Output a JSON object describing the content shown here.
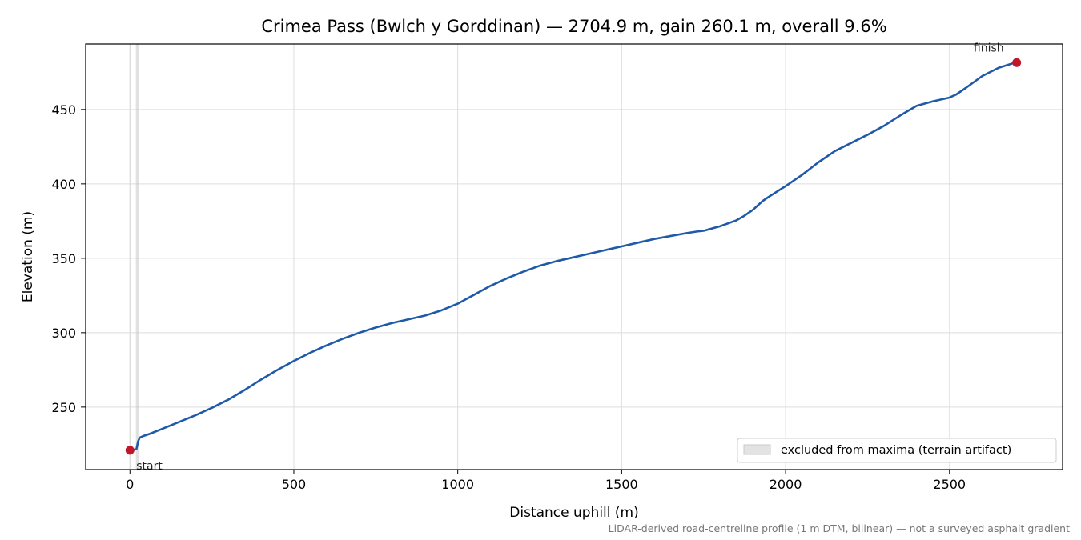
{
  "chart_data": {
    "type": "line",
    "title": "Crimea Pass (Bwlch y Gorddinan) — 2704.9 m, gain 260.1 m, overall 9.6%",
    "xlabel": "Distance uphill (m)",
    "ylabel": "Elevation (m)",
    "xlim": [
      -135,
      2845
    ],
    "ylim": [
      208,
      494
    ],
    "x_ticks": [
      0,
      500,
      1000,
      1500,
      2000,
      2500
    ],
    "y_ticks": [
      250,
      300,
      350,
      400,
      450
    ],
    "grid": true,
    "series": [
      {
        "color": "#1f5aa8",
        "x": [
          0,
          10,
          20,
          25,
          30,
          40,
          60,
          100,
          150,
          200,
          250,
          300,
          350,
          400,
          450,
          500,
          550,
          600,
          650,
          700,
          750,
          800,
          850,
          900,
          950,
          1000,
          1050,
          1100,
          1150,
          1200,
          1250,
          1300,
          1350,
          1400,
          1450,
          1500,
          1550,
          1600,
          1650,
          1700,
          1730,
          1750,
          1800,
          1850,
          1870,
          1900,
          1930,
          1950,
          2000,
          2050,
          2100,
          2150,
          2200,
          2250,
          2300,
          2350,
          2400,
          2450,
          2500,
          2520,
          2550,
          2600,
          2650,
          2700,
          2704.9
        ],
        "y": [
          221,
          221,
          222,
          227,
          229.5,
          230.5,
          232,
          235.5,
          240,
          244.5,
          249.5,
          255,
          261.5,
          268.5,
          275,
          281,
          286.5,
          291.5,
          296,
          300,
          303.5,
          306.5,
          309,
          311.5,
          315,
          319.5,
          325.5,
          331.5,
          336.5,
          341,
          345,
          348,
          350.5,
          353,
          355.5,
          358,
          360.5,
          363,
          365,
          367,
          368,
          368.5,
          371.5,
          375.5,
          378,
          382.5,
          388.5,
          391.5,
          398.5,
          406,
          414.5,
          422,
          427.5,
          433,
          439,
          446,
          452.5,
          455.5,
          458,
          460,
          464.5,
          472.5,
          478,
          481.5,
          481.5
        ]
      }
    ],
    "markers": [
      {
        "label": "start",
        "x": 0,
        "y": 221,
        "color": "#c0182a"
      },
      {
        "label": "finish",
        "x": 2704.9,
        "y": 481.5,
        "color": "#c0182a"
      }
    ],
    "excluded_band": {
      "x": [
        18,
        27
      ],
      "color": "#bdbdbd"
    },
    "legend": {
      "position": "lower-right",
      "entries": [
        "excluded from maxima (terrain artifact)"
      ]
    },
    "footnote": "LiDAR-derived road-centreline profile (1 m DTM, bilinear) — not a surveyed asphalt gradient"
  }
}
